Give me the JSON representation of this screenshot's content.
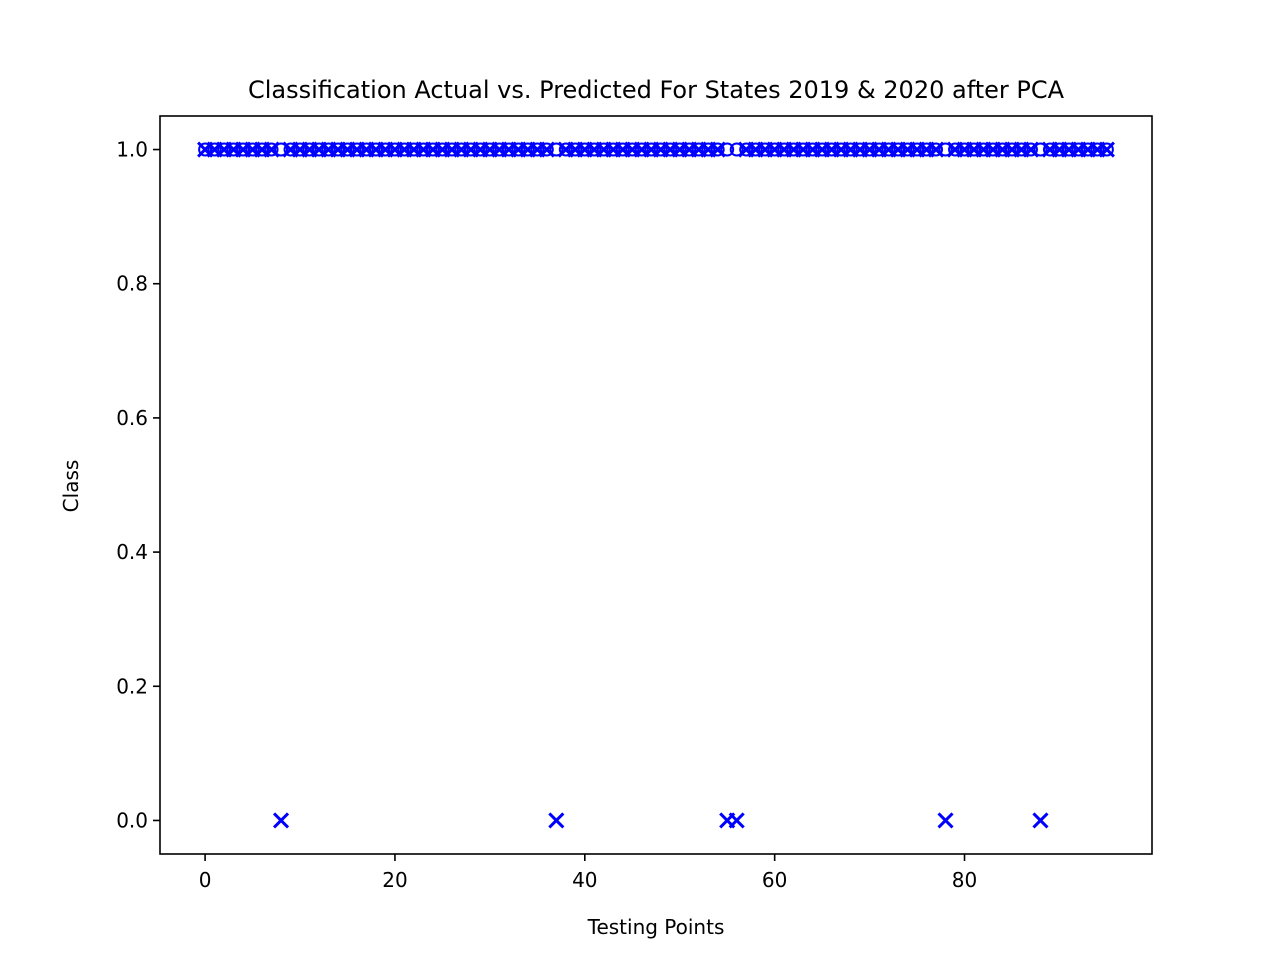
{
  "chart_data": {
    "type": "scatter",
    "title": "Classification Actual vs. Predicted For States 2019 & 2020 after PCA",
    "xlabel": "Testing Points",
    "ylabel": "Class",
    "xlim": [
      -4.75,
      99.75
    ],
    "ylim": [
      -0.05,
      1.05
    ],
    "xticks": [
      0,
      20,
      40,
      60,
      80
    ],
    "yticks": [
      0.0,
      0.2,
      0.4,
      0.6,
      0.8,
      1.0
    ],
    "xtick_labels": [
      "0",
      "20",
      "40",
      "60",
      "80"
    ],
    "ytick_labels": [
      "0.0",
      "0.2",
      "0.4",
      "0.6",
      "0.8",
      "1.0"
    ],
    "grid": false,
    "series": [
      {
        "marker": "o",
        "color": "#0000ff",
        "x": [
          0,
          1,
          2,
          3,
          4,
          5,
          6,
          7,
          8,
          9,
          10,
          11,
          12,
          13,
          14,
          15,
          16,
          17,
          18,
          19,
          20,
          21,
          22,
          23,
          24,
          25,
          26,
          27,
          28,
          29,
          30,
          31,
          32,
          33,
          34,
          35,
          36,
          37,
          38,
          39,
          40,
          41,
          42,
          43,
          44,
          45,
          46,
          47,
          48,
          49,
          50,
          51,
          52,
          53,
          54,
          55,
          56,
          57,
          58,
          59,
          60,
          61,
          62,
          63,
          64,
          65,
          66,
          67,
          68,
          69,
          70,
          71,
          72,
          73,
          74,
          75,
          76,
          77,
          78,
          79,
          80,
          81,
          82,
          83,
          84,
          85,
          86,
          87,
          88,
          89,
          90,
          91,
          92,
          93,
          94,
          95
        ],
        "y": [
          1,
          1,
          1,
          1,
          1,
          1,
          1,
          1,
          1,
          1,
          1,
          1,
          1,
          1,
          1,
          1,
          1,
          1,
          1,
          1,
          1,
          1,
          1,
          1,
          1,
          1,
          1,
          1,
          1,
          1,
          1,
          1,
          1,
          1,
          1,
          1,
          1,
          1,
          1,
          1,
          1,
          1,
          1,
          1,
          1,
          1,
          1,
          1,
          1,
          1,
          1,
          1,
          1,
          1,
          1,
          1,
          1,
          1,
          1,
          1,
          1,
          1,
          1,
          1,
          1,
          1,
          1,
          1,
          1,
          1,
          1,
          1,
          1,
          1,
          1,
          1,
          1,
          1,
          1,
          1,
          1,
          1,
          1,
          1,
          1,
          1,
          1,
          1,
          1,
          1,
          1,
          1,
          1,
          1,
          1,
          1
        ]
      },
      {
        "marker": "x",
        "color": "#0000ff",
        "x": [
          0,
          1,
          2,
          3,
          4,
          5,
          6,
          7,
          8,
          9,
          10,
          11,
          12,
          13,
          14,
          15,
          16,
          17,
          18,
          19,
          20,
          21,
          22,
          23,
          24,
          25,
          26,
          27,
          28,
          29,
          30,
          31,
          32,
          33,
          34,
          35,
          36,
          37,
          38,
          39,
          40,
          41,
          42,
          43,
          44,
          45,
          46,
          47,
          48,
          49,
          50,
          51,
          52,
          53,
          54,
          55,
          56,
          57,
          58,
          59,
          60,
          61,
          62,
          63,
          64,
          65,
          66,
          67,
          68,
          69,
          70,
          71,
          72,
          73,
          74,
          75,
          76,
          77,
          78,
          79,
          80,
          81,
          82,
          83,
          84,
          85,
          86,
          87,
          88,
          89,
          90,
          91,
          92,
          93,
          94,
          95
        ],
        "y": [
          1,
          1,
          1,
          1,
          1,
          1,
          1,
          1,
          0,
          1,
          1,
          1,
          1,
          1,
          1,
          1,
          1,
          1,
          1,
          1,
          1,
          1,
          1,
          1,
          1,
          1,
          1,
          1,
          1,
          1,
          1,
          1,
          1,
          1,
          1,
          1,
          1,
          0,
          1,
          1,
          1,
          1,
          1,
          1,
          1,
          1,
          1,
          1,
          1,
          1,
          1,
          1,
          1,
          1,
          1,
          0,
          0,
          1,
          1,
          1,
          1,
          1,
          1,
          1,
          1,
          1,
          1,
          1,
          1,
          1,
          1,
          1,
          1,
          1,
          1,
          1,
          1,
          1,
          0,
          1,
          1,
          1,
          1,
          1,
          1,
          1,
          1,
          1,
          0,
          1,
          1,
          1,
          1,
          1,
          1,
          1
        ]
      }
    ]
  }
}
